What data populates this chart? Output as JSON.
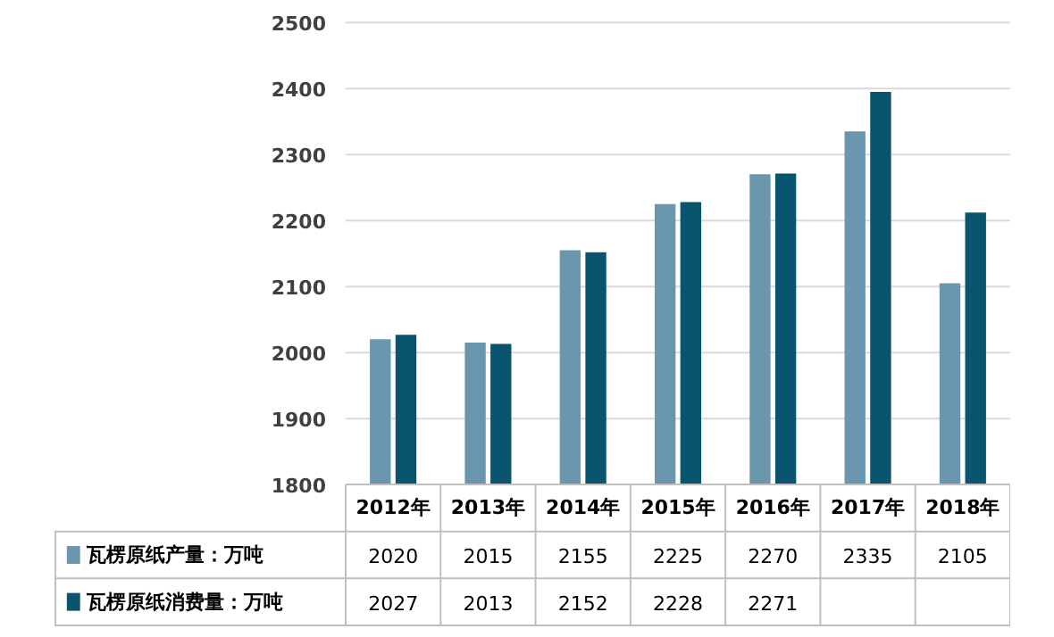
{
  "chart_data": {
    "type": "bar",
    "categories": [
      "2012年",
      "2013年",
      "2014年",
      "2015年",
      "2016年",
      "2017年",
      "2018年"
    ],
    "series": [
      {
        "name": "瓦楞原纸产量：万吨",
        "color": "#6a97ad",
        "values": [
          2020,
          2015,
          2155,
          2225,
          2270,
          2335,
          2105
        ],
        "value_labels": [
          "2020",
          "2015",
          "2155",
          "2225",
          "2270",
          "2335",
          "2105"
        ]
      },
      {
        "name": "瓦楞原纸消费量：万吨",
        "color": "#0b5470",
        "values": [
          2027,
          2013,
          2152,
          2228,
          2271,
          2395,
          2212
        ],
        "value_labels": [
          "2027",
          "2013",
          "2152",
          "2228",
          "2271",
          null,
          null
        ]
      }
    ],
    "ylim": [
      1800,
      2500
    ],
    "yticks": [
      1800,
      1900,
      2000,
      2100,
      2200,
      2300,
      2400,
      2500
    ],
    "grid": "y",
    "legend": "bottom"
  }
}
